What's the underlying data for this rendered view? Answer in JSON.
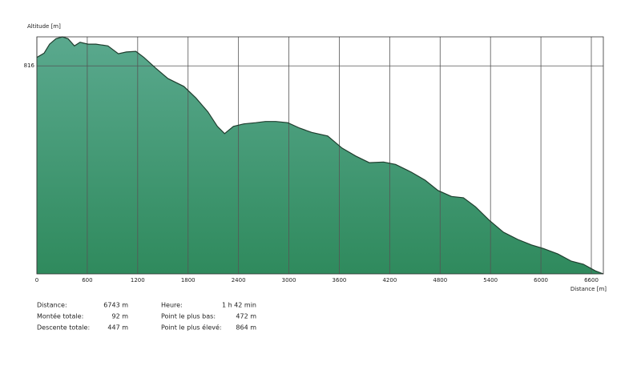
{
  "chart_data": {
    "type": "area",
    "y_label": "Altitude [m]",
    "x_label": "Distance [m]",
    "x": [
      0,
      86,
      152,
      228,
      304,
      371,
      447,
      514,
      609,
      704,
      846,
      970,
      1065,
      1179,
      1274,
      1417,
      1560,
      1750,
      1893,
      2035,
      2149,
      2235,
      2340,
      2463,
      2606,
      2720,
      2844,
      2986,
      3129,
      3271,
      3462,
      3633,
      3795,
      3956,
      4127,
      4270,
      4460,
      4622,
      4774,
      4936,
      5078,
      5221,
      5383,
      5554,
      5725,
      5887,
      6030,
      6201,
      6362,
      6505,
      6648,
      6743
    ],
    "values": [
      830,
      837,
      852,
      861,
      864,
      861,
      849,
      855,
      852,
      852,
      849,
      836,
      839,
      840,
      830,
      812,
      795,
      782,
      763,
      740,
      716,
      704,
      716,
      720,
      722,
      724,
      724,
      722,
      713,
      706,
      700,
      680,
      667,
      656,
      657,
      653,
      640,
      627,
      610,
      600,
      598,
      583,
      561,
      541,
      529,
      520,
      514,
      505,
      493,
      488,
      477,
      472
    ],
    "color": "#1f3d2e",
    "gradient": [
      "#5aa98e",
      "#2f8a5d"
    ],
    "xlim": [
      0,
      6743
    ],
    "xticks": [
      0,
      600,
      1200,
      1800,
      2400,
      3000,
      3600,
      4200,
      4800,
      5400,
      6000,
      6600
    ],
    "ylim": [
      472,
      864
    ],
    "yticks": [
      816
    ],
    "grid": true
  },
  "summary": [
    [
      {
        "label": "Distance:",
        "value": "6743 m"
      },
      {
        "label": "Heure:",
        "value": "1 h 42 min"
      }
    ],
    [
      {
        "label": "Montée totale:",
        "value": "92 m"
      },
      {
        "label": "Point le plus bas:",
        "value": "472 m"
      }
    ],
    [
      {
        "label": "Descente totale:",
        "value": "447 m"
      },
      {
        "label": "Point le plus élevé:",
        "value": "864 m"
      }
    ]
  ]
}
